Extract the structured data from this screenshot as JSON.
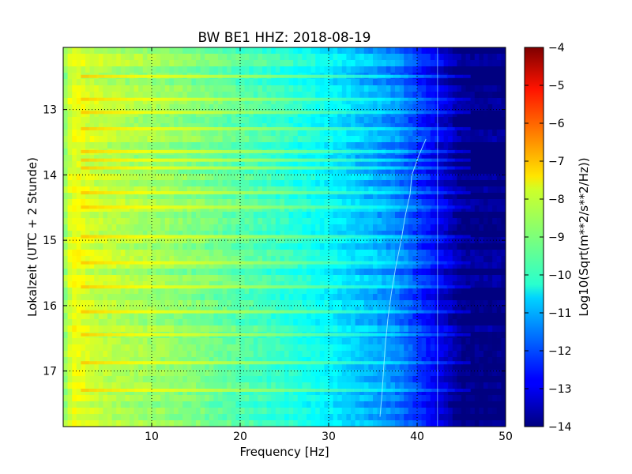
{
  "chart_data": {
    "type": "heatmap",
    "title": "BW BE1 HHZ: 2018-08-19",
    "xlabel": "Frequency [Hz]",
    "ylabel": "Lokalzeit (UTC + 2 Stunde)",
    "xlim": [
      0,
      50
    ],
    "ylim": [
      12.05,
      17.85
    ],
    "y_inverted": true,
    "x_ticks": [
      "10",
      "20",
      "30",
      "40",
      "50"
    ],
    "x_tick_values": [
      10,
      20,
      30,
      40,
      50
    ],
    "y_ticks": [
      "13",
      "14",
      "15",
      "16",
      "17"
    ],
    "y_tick_values": [
      13,
      14,
      15,
      16,
      17
    ],
    "grid": true,
    "colormap": "jet",
    "colorbar": {
      "label": "Log10(Sqrt(m**2/s**2/Hz))",
      "min": -14,
      "max": -4,
      "ticks": [
        "−4",
        "−5",
        "−6",
        "−7",
        "−8",
        "−9",
        "−10",
        "−11",
        "−12",
        "−13",
        "−14"
      ],
      "tick_values": [
        -4,
        -5,
        -6,
        -7,
        -8,
        -9,
        -10,
        -11,
        -12,
        -13,
        -14
      ]
    },
    "spectral_profile": {
      "frequency_hz": [
        0,
        1,
        2,
        3,
        5,
        8,
        10,
        15,
        20,
        25,
        30,
        32,
        35,
        38,
        40,
        42,
        44,
        45,
        50
      ],
      "log_psd": [
        -9.0,
        -7.9,
        -8.0,
        -8.2,
        -8.4,
        -8.6,
        -8.7,
        -9.0,
        -9.4,
        -9.8,
        -10.3,
        -10.6,
        -11.0,
        -11.5,
        -12.2,
        -12.8,
        -13.5,
        -14.0,
        -14.0
      ]
    },
    "line_track": {
      "time": [
        13.45,
        13.7,
        14.0,
        14.3,
        14.6,
        15.0,
        15.4,
        15.8,
        16.2,
        16.6,
        17.0,
        17.4,
        17.7
      ],
      "frequency_hz": [
        41.0,
        40.2,
        39.4,
        39.2,
        38.7,
        38.2,
        37.6,
        37.1,
        36.7,
        36.4,
        36.2,
        36.0,
        35.8
      ]
    },
    "constant_line_hz": 42.3,
    "bright_bands_time": [
      12.5,
      12.85,
      13.05,
      13.3,
      13.65,
      13.78,
      13.9,
      14.28,
      14.5,
      14.95,
      15.35,
      15.72,
      16.1,
      16.45,
      16.88,
      17.3
    ]
  }
}
